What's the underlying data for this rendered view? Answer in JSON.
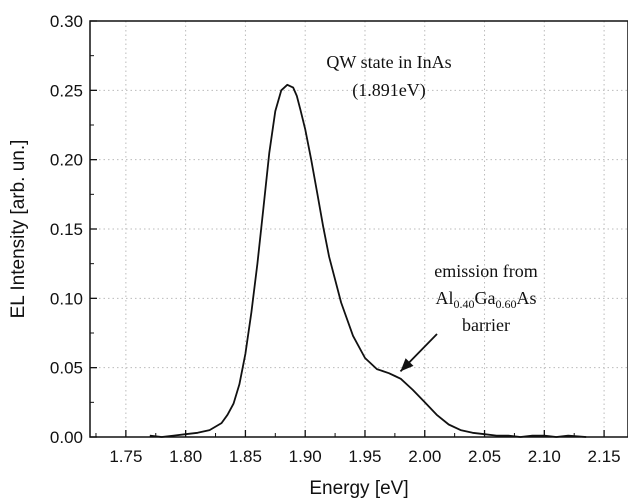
{
  "chart_data": {
    "type": "line",
    "title": "",
    "xlabel": "Energy [eV]",
    "ylabel": "EL Intensity [arb. un.]",
    "xlim": [
      1.72,
      2.17
    ],
    "ylim": [
      0.0,
      0.3
    ],
    "x_ticks": [
      "1.75",
      "1.80",
      "1.85",
      "1.90",
      "1.95",
      "2.00",
      "2.05",
      "2.10",
      "2.15"
    ],
    "y_ticks": [
      "0.00",
      "0.05",
      "0.10",
      "0.15",
      "0.20",
      "0.25",
      "0.30"
    ],
    "grid": true,
    "legend": "none",
    "line_color": "#111111",
    "series": [
      {
        "x": [
          1.77,
          1.78,
          1.79,
          1.8,
          1.81,
          1.82,
          1.83,
          1.835,
          1.84,
          1.845,
          1.85,
          1.855,
          1.86,
          1.865,
          1.87,
          1.875,
          1.88,
          1.885,
          1.89,
          1.893,
          1.896,
          1.9,
          1.905,
          1.91,
          1.915,
          1.92,
          1.93,
          1.94,
          1.95,
          1.96,
          1.97,
          1.975,
          1.98,
          1.99,
          2.0,
          2.01,
          2.02,
          2.03,
          2.04,
          2.05,
          2.06,
          2.07,
          2.08,
          2.09,
          2.1,
          2.11,
          2.12,
          2.135
        ],
        "values": [
          0.001,
          0.0,
          0.001,
          0.002,
          0.003,
          0.005,
          0.01,
          0.016,
          0.024,
          0.038,
          0.06,
          0.09,
          0.125,
          0.165,
          0.205,
          0.235,
          0.25,
          0.254,
          0.252,
          0.246,
          0.236,
          0.222,
          0.2,
          0.176,
          0.152,
          0.13,
          0.097,
          0.073,
          0.057,
          0.049,
          0.046,
          0.044,
          0.042,
          0.034,
          0.025,
          0.016,
          0.009,
          0.005,
          0.003,
          0.002,
          0.001,
          0.001,
          0.0,
          0.001,
          0.001,
          0.0,
          0.001,
          0.0
        ]
      }
    ],
    "annotations": {
      "peak_line1": "QW state in InAs",
      "peak_line2": "(1.891eV)",
      "barrier_line1": "emission from",
      "barrier_al": "Al",
      "barrier_al_sub": "0.40",
      "barrier_ga": "Ga",
      "barrier_ga_sub": "0.60",
      "barrier_as": "As",
      "barrier_line3": "barrier",
      "arrow_target": {
        "x": 1.978,
        "y": 0.043
      }
    }
  }
}
